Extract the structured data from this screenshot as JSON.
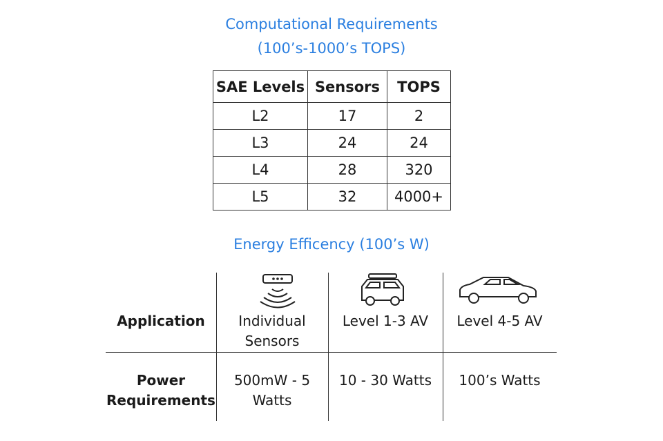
{
  "computational": {
    "title": [
      "Computational Requirements",
      "(100’s-1000’s TOPS)"
    ],
    "table": {
      "header": [
        "SAE Levels",
        "Sensors",
        "TOPS"
      ],
      "rows": [
        [
          "L2",
          "17",
          "2"
        ],
        [
          "L3",
          "24",
          "24"
        ],
        [
          "L4",
          "28",
          "320"
        ],
        [
          "L5",
          "32",
          "4000+"
        ]
      ]
    }
  },
  "energy": {
    "title": "Energy Efficency  (100’s W)",
    "rows": [
      {
        "label": [
          "Application"
        ],
        "cells": [
          [
            "Individual",
            "Sensors"
          ],
          [
            "Level 1-3 AV"
          ],
          [
            "Level 4-5 AV"
          ]
        ]
      },
      {
        "label": [
          "Power",
          "Requirements"
        ],
        "cells": [
          [
            "500mW - 5",
            "Watts"
          ],
          [
            "10 - 30 Watts"
          ],
          [
            "100’s Watts"
          ]
        ]
      }
    ]
  }
}
